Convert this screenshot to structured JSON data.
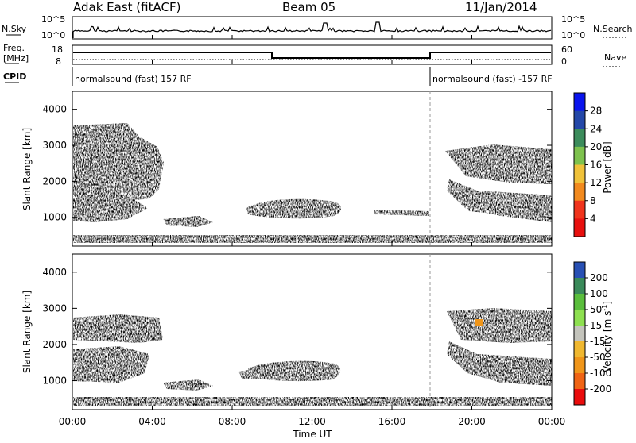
{
  "header": {
    "station": "Adak East (fitACF)",
    "beam": "Beam 05",
    "date": "11/Jan/2014"
  },
  "top_panels": {
    "nsky_label": "N.Sky",
    "nsky_ticks": [
      "10^5",
      "10^0"
    ],
    "nsearch_label": "N.Search",
    "nsearch_ticks": [
      "10^5",
      "10^0"
    ],
    "freq_label_1": "Freq.",
    "freq_label_2": "[MHz]",
    "freq_ticks": [
      "18",
      "8"
    ],
    "nave_label": "Nave",
    "nave_ticks": [
      "60",
      "0"
    ],
    "cpid_label": "CPID",
    "cpid_segments": [
      {
        "text": "normalsound (fast) 157 RF"
      },
      {
        "text": "normalsound (fast) -157 RF"
      }
    ]
  },
  "chart_data": [
    {
      "type": "heatmap",
      "name": "power",
      "ylabel": "Slant Range [km]",
      "yticks": [
        "1000",
        "2000",
        "3000",
        "4000"
      ],
      "ylim": [
        200,
        4500
      ],
      "colorbar_label": "Power [dB]",
      "colorbar_ticks": [
        "4",
        "8",
        "12",
        "16",
        "20",
        "24",
        "28"
      ],
      "colorbar_colors": [
        "#0a14ee",
        "#2448a8",
        "#3c8c5c",
        "#7ec24e",
        "#f0c23a",
        "#f28a1e",
        "#f0341c",
        "#e8100e"
      ]
    },
    {
      "type": "heatmap",
      "name": "velocity",
      "ylabel": "Slant Range [km]",
      "yticks": [
        "1000",
        "2000",
        "3000",
        "4000"
      ],
      "ylim": [
        200,
        4500
      ],
      "colorbar_label": "Velocity [m s",
      "colorbar_label_sup": "-1",
      "colorbar_label_end": "]",
      "colorbar_ticks": [
        "200",
        "100",
        "50",
        "15",
        "-15",
        "-50",
        "-100",
        "-200"
      ],
      "colorbar_colors": [
        "#2850b4",
        "#3a8a5a",
        "#5abe3c",
        "#8ee050",
        "#c4c4bc",
        "#f0b830",
        "#f0961a",
        "#f06414",
        "#ea0c0c"
      ]
    }
  ],
  "xaxis": {
    "label": "Time UT",
    "ticks": [
      "00:00",
      "04:00",
      "08:00",
      "12:00",
      "16:00",
      "20:00",
      "00:00"
    ]
  }
}
